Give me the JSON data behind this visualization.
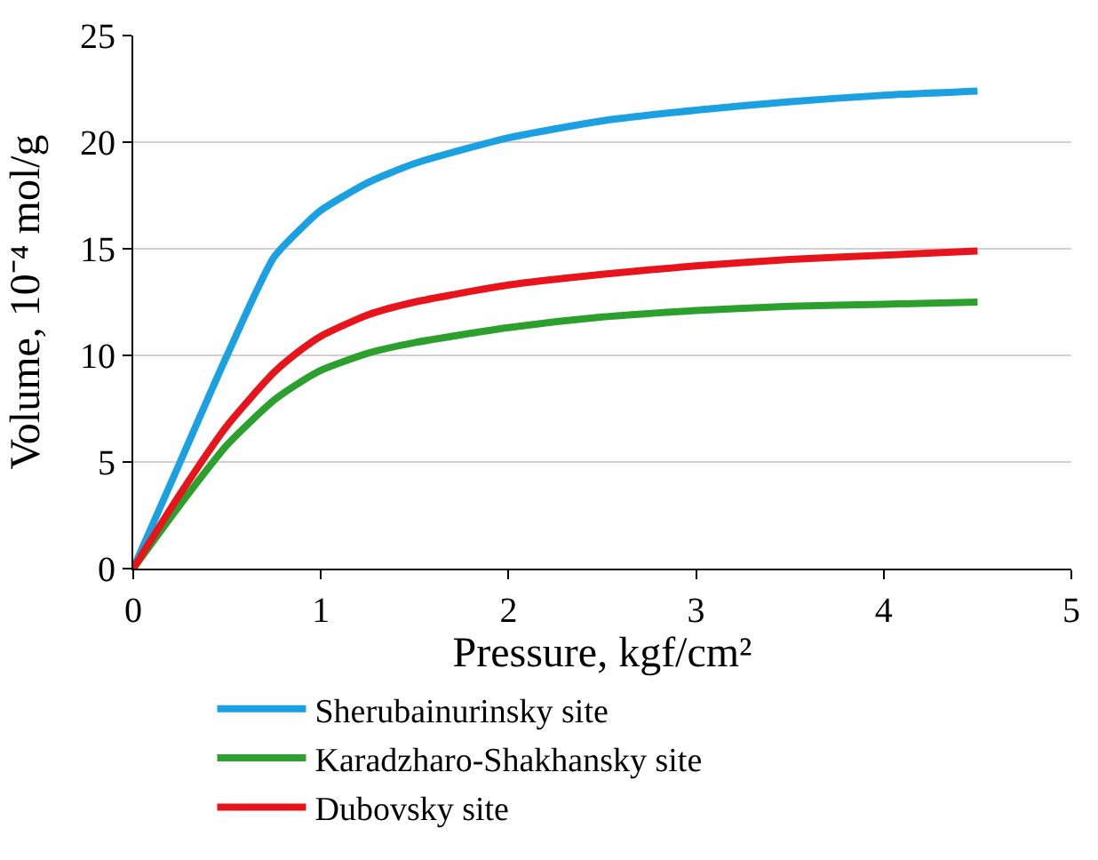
{
  "chart_data": {
    "type": "line",
    "xlabel": "Pressure, kgf/cm²",
    "ylabel": "Volume, 10⁻⁴ mol/g",
    "x": [
      0,
      0.25,
      0.5,
      0.75,
      0.9,
      1,
      1.25,
      1.5,
      2,
      2.5,
      3,
      3.5,
      4,
      4.5
    ],
    "series": [
      {
        "name": "Sherubainurinsky site",
        "color": "#1ba1e2",
        "values": [
          0,
          5,
          10,
          14.6,
          16,
          16.8,
          18.1,
          19,
          20.2,
          21,
          21.5,
          21.9,
          22.2,
          22.4
        ]
      },
      {
        "name": "Karadzharo-Shakhansky site",
        "color": "#2ca02c",
        "values": [
          0,
          3,
          5.8,
          7.9,
          8.8,
          9.3,
          10.1,
          10.6,
          11.3,
          11.8,
          12.1,
          12.3,
          12.4,
          12.5
        ]
      },
      {
        "name": "Dubovsky site",
        "color": "#e8141b",
        "values": [
          0,
          3.5,
          6.7,
          9.2,
          10.3,
          10.9,
          11.9,
          12.5,
          13.3,
          13.8,
          14.2,
          14.5,
          14.7,
          14.9
        ]
      }
    ],
    "xlim": [
      0,
      5
    ],
    "xticks": [
      0,
      1,
      2,
      3,
      4,
      5
    ],
    "ylim": [
      0,
      25
    ],
    "yticks": [
      0,
      5,
      10,
      15,
      20,
      25
    ],
    "grid": "y",
    "legend": "bottom",
    "marker": "none",
    "line_style": "solid"
  }
}
